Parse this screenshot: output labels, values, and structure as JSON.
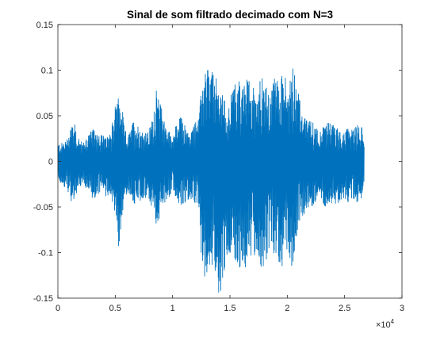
{
  "chart_data": {
    "type": "line",
    "title": "Sinal de som filtrado decimado com N=3",
    "xlabel": "",
    "ylabel": "",
    "xlim": [
      0,
      30000
    ],
    "ylim": [
      -0.15,
      0.15
    ],
    "x_ticks": [
      0,
      5000,
      10000,
      15000,
      20000,
      25000,
      30000
    ],
    "x_tick_labels": [
      "0",
      "0.5",
      "1",
      "1.5",
      "2",
      "2.5",
      "3"
    ],
    "x_exponent_label": {
      "base": "×10",
      "exponent": "4"
    },
    "y_ticks": [
      -0.15,
      -0.1,
      -0.05,
      0,
      0.05,
      0.1,
      0.15
    ],
    "y_tick_labels": [
      "-0.15",
      "-0.1",
      "-0.05",
      "0",
      "0.05",
      "0.1",
      "0.15"
    ],
    "grid": false,
    "series": [
      {
        "color": "#0072BD",
        "x_range": [
          0,
          26700
        ],
        "envelope": {
          "x": [
            0,
            300,
            800,
            1200,
            1500,
            1800,
            2200,
            2600,
            3000,
            3400,
            3800,
            4200,
            4600,
            5000,
            5300,
            5600,
            5800,
            6200,
            6600,
            7000,
            7400,
            7800,
            8200,
            8600,
            8800,
            9200,
            9600,
            10000,
            10300,
            10700,
            11100,
            11500,
            11900,
            12300,
            12600,
            12900,
            13300,
            13700,
            14100,
            14500,
            14900,
            15300,
            15700,
            16100,
            16500,
            16900,
            17300,
            17700,
            18100,
            18500,
            18900,
            19300,
            19700,
            20100,
            20500,
            20900,
            21300,
            21700,
            22100,
            22500,
            22900,
            23300,
            23700,
            24100,
            24500,
            24900,
            25300,
            25700,
            26100,
            26500,
            26700
          ],
          "upper": [
            0.02,
            0.02,
            0.025,
            0.045,
            0.04,
            0.025,
            0.02,
            0.03,
            0.035,
            0.035,
            0.03,
            0.025,
            0.03,
            0.06,
            0.07,
            0.06,
            0.035,
            0.03,
            0.045,
            0.04,
            0.035,
            0.03,
            0.045,
            0.08,
            0.07,
            0.05,
            0.035,
            0.03,
            0.04,
            0.05,
            0.04,
            0.03,
            0.04,
            0.05,
            0.09,
            0.1,
            0.1,
            0.095,
            0.08,
            0.07,
            0.06,
            0.085,
            0.09,
            0.08,
            0.09,
            0.085,
            0.08,
            0.095,
            0.085,
            0.07,
            0.1,
            0.085,
            0.1,
            0.075,
            0.11,
            0.085,
            0.05,
            0.045,
            0.045,
            0.04,
            0.035,
            0.04,
            0.045,
            0.04,
            0.035,
            0.03,
            0.04,
            0.035,
            0.04,
            0.04,
            0.02
          ],
          "lower": [
            -0.02,
            -0.025,
            -0.03,
            -0.045,
            -0.04,
            -0.03,
            -0.025,
            -0.035,
            -0.04,
            -0.04,
            -0.035,
            -0.04,
            -0.035,
            -0.06,
            -0.1,
            -0.06,
            -0.04,
            -0.035,
            -0.045,
            -0.05,
            -0.04,
            -0.04,
            -0.05,
            -0.07,
            -0.065,
            -0.05,
            -0.04,
            -0.035,
            -0.04,
            -0.05,
            -0.045,
            -0.04,
            -0.045,
            -0.05,
            -0.13,
            -0.125,
            -0.11,
            -0.12,
            -0.15,
            -0.12,
            -0.1,
            -0.1,
            -0.12,
            -0.11,
            -0.12,
            -0.11,
            -0.1,
            -0.12,
            -0.11,
            -0.1,
            -0.115,
            -0.11,
            -0.12,
            -0.1,
            -0.12,
            -0.075,
            -0.06,
            -0.055,
            -0.05,
            -0.045,
            -0.04,
            -0.05,
            -0.045,
            -0.05,
            -0.045,
            -0.04,
            -0.045,
            -0.04,
            -0.045,
            -0.04,
            -0.025
          ]
        }
      }
    ]
  }
}
